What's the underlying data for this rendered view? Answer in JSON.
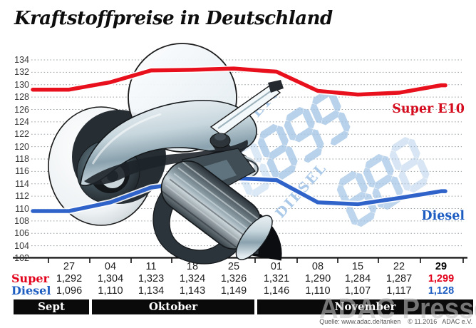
{
  "title": "Kraftstoffpreise in Deutschland",
  "source": "Quelle: www.adac.de/tanken    © 11.2016   ADAC e.V.",
  "watermark": "ADAC Presse",
  "series_labels": {
    "super": "Super E10",
    "diesel": "Diesel"
  },
  "colors": {
    "super_red": "#e8101c",
    "super_label_red": "#d40c1e",
    "diesel_blue": "#2f63c9",
    "diesel_label_blue": "#1d5dc2",
    "digits_light_blue": "#a7c7e7",
    "month_bar_black": "#0a0a0a",
    "grid_gray": "#9aa0a3"
  },
  "background_display": {
    "groups": [
      {
        "digits": "0899",
        "label": "SUPER E10"
      },
      {
        "digits": "888",
        "label": "DIESEL"
      }
    ]
  },
  "chart_data": {
    "type": "line",
    "title": "Kraftstoffpreise in Deutschland",
    "xlabel": "",
    "ylabel": "",
    "ylim": [
      102,
      134
    ],
    "y_ticks": [
      134,
      132,
      130,
      128,
      126,
      124,
      122,
      120,
      118,
      116,
      114,
      112,
      110,
      108,
      106,
      104,
      102
    ],
    "grid": "horizontal-dotted",
    "legend_position": "line-end-right",
    "x_tick_labels": [
      "27",
      "04",
      "11",
      "18",
      "25",
      "01",
      "08",
      "15",
      "22",
      "29"
    ],
    "months": [
      {
        "label": "Sept",
        "columns": [
          0,
          0
        ]
      },
      {
        "label": "Oktober",
        "columns": [
          1,
          4
        ]
      },
      {
        "label": "November",
        "columns": [
          5,
          9
        ]
      }
    ],
    "series": [
      {
        "name": "Super E10",
        "color": "#e8101c",
        "values": [
          129.2,
          130.4,
          132.3,
          132.4,
          132.6,
          132.1,
          129.0,
          128.4,
          128.7,
          129.9
        ]
      },
      {
        "name": "Diesel",
        "color": "#2f63c9",
        "values": [
          109.6,
          111.0,
          113.4,
          114.3,
          114.9,
          114.6,
          111.0,
          110.7,
          111.7,
          112.8
        ]
      }
    ],
    "table": {
      "rows": [
        {
          "label": "Super",
          "color": "#e2001a",
          "values": [
            "1,292",
            "1,304",
            "1,323",
            "1,324",
            "1,326",
            "1,321",
            "1,290",
            "1,284",
            "1,287",
            "1,299"
          ]
        },
        {
          "label": "Diesel",
          "color": "#1d5dc2",
          "values": [
            "1,096",
            "1,110",
            "1,134",
            "1,143",
            "1,149",
            "1,146",
            "1,110",
            "1,107",
            "1,117",
            "1,128"
          ]
        }
      ],
      "last_column_bold": true
    }
  }
}
